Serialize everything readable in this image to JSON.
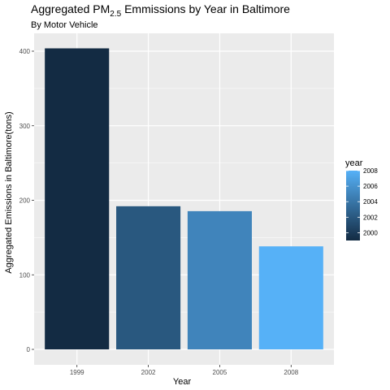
{
  "chart_data": {
    "type": "bar",
    "title_main": "Aggregated PM",
    "title_sub": "2.5",
    "title_rest": " Emmissions by Year in Baltimore",
    "subtitle": "By Motor Vehicle",
    "xlabel": "Year",
    "ylabel": "Aggregated Emissions in Baltimore(tons)",
    "categories": [
      "1999",
      "2002",
      "2005",
      "2008"
    ],
    "values": [
      403.8,
      192.0,
      185.4,
      138.2
    ],
    "ylim": [
      0,
      424
    ],
    "yticks": [
      0,
      100,
      200,
      300,
      400
    ],
    "grid": true,
    "fill_by": "year",
    "legend": {
      "title": "year",
      "position": "right",
      "ticks": [
        2000,
        2002,
        2004,
        2006,
        2008
      ],
      "range": [
        1999,
        2008
      ],
      "low_color": "#132b43",
      "high_color": "#56b1f7"
    },
    "panel_color": "#ebebeb",
    "grid_color": "#ffffff"
  }
}
